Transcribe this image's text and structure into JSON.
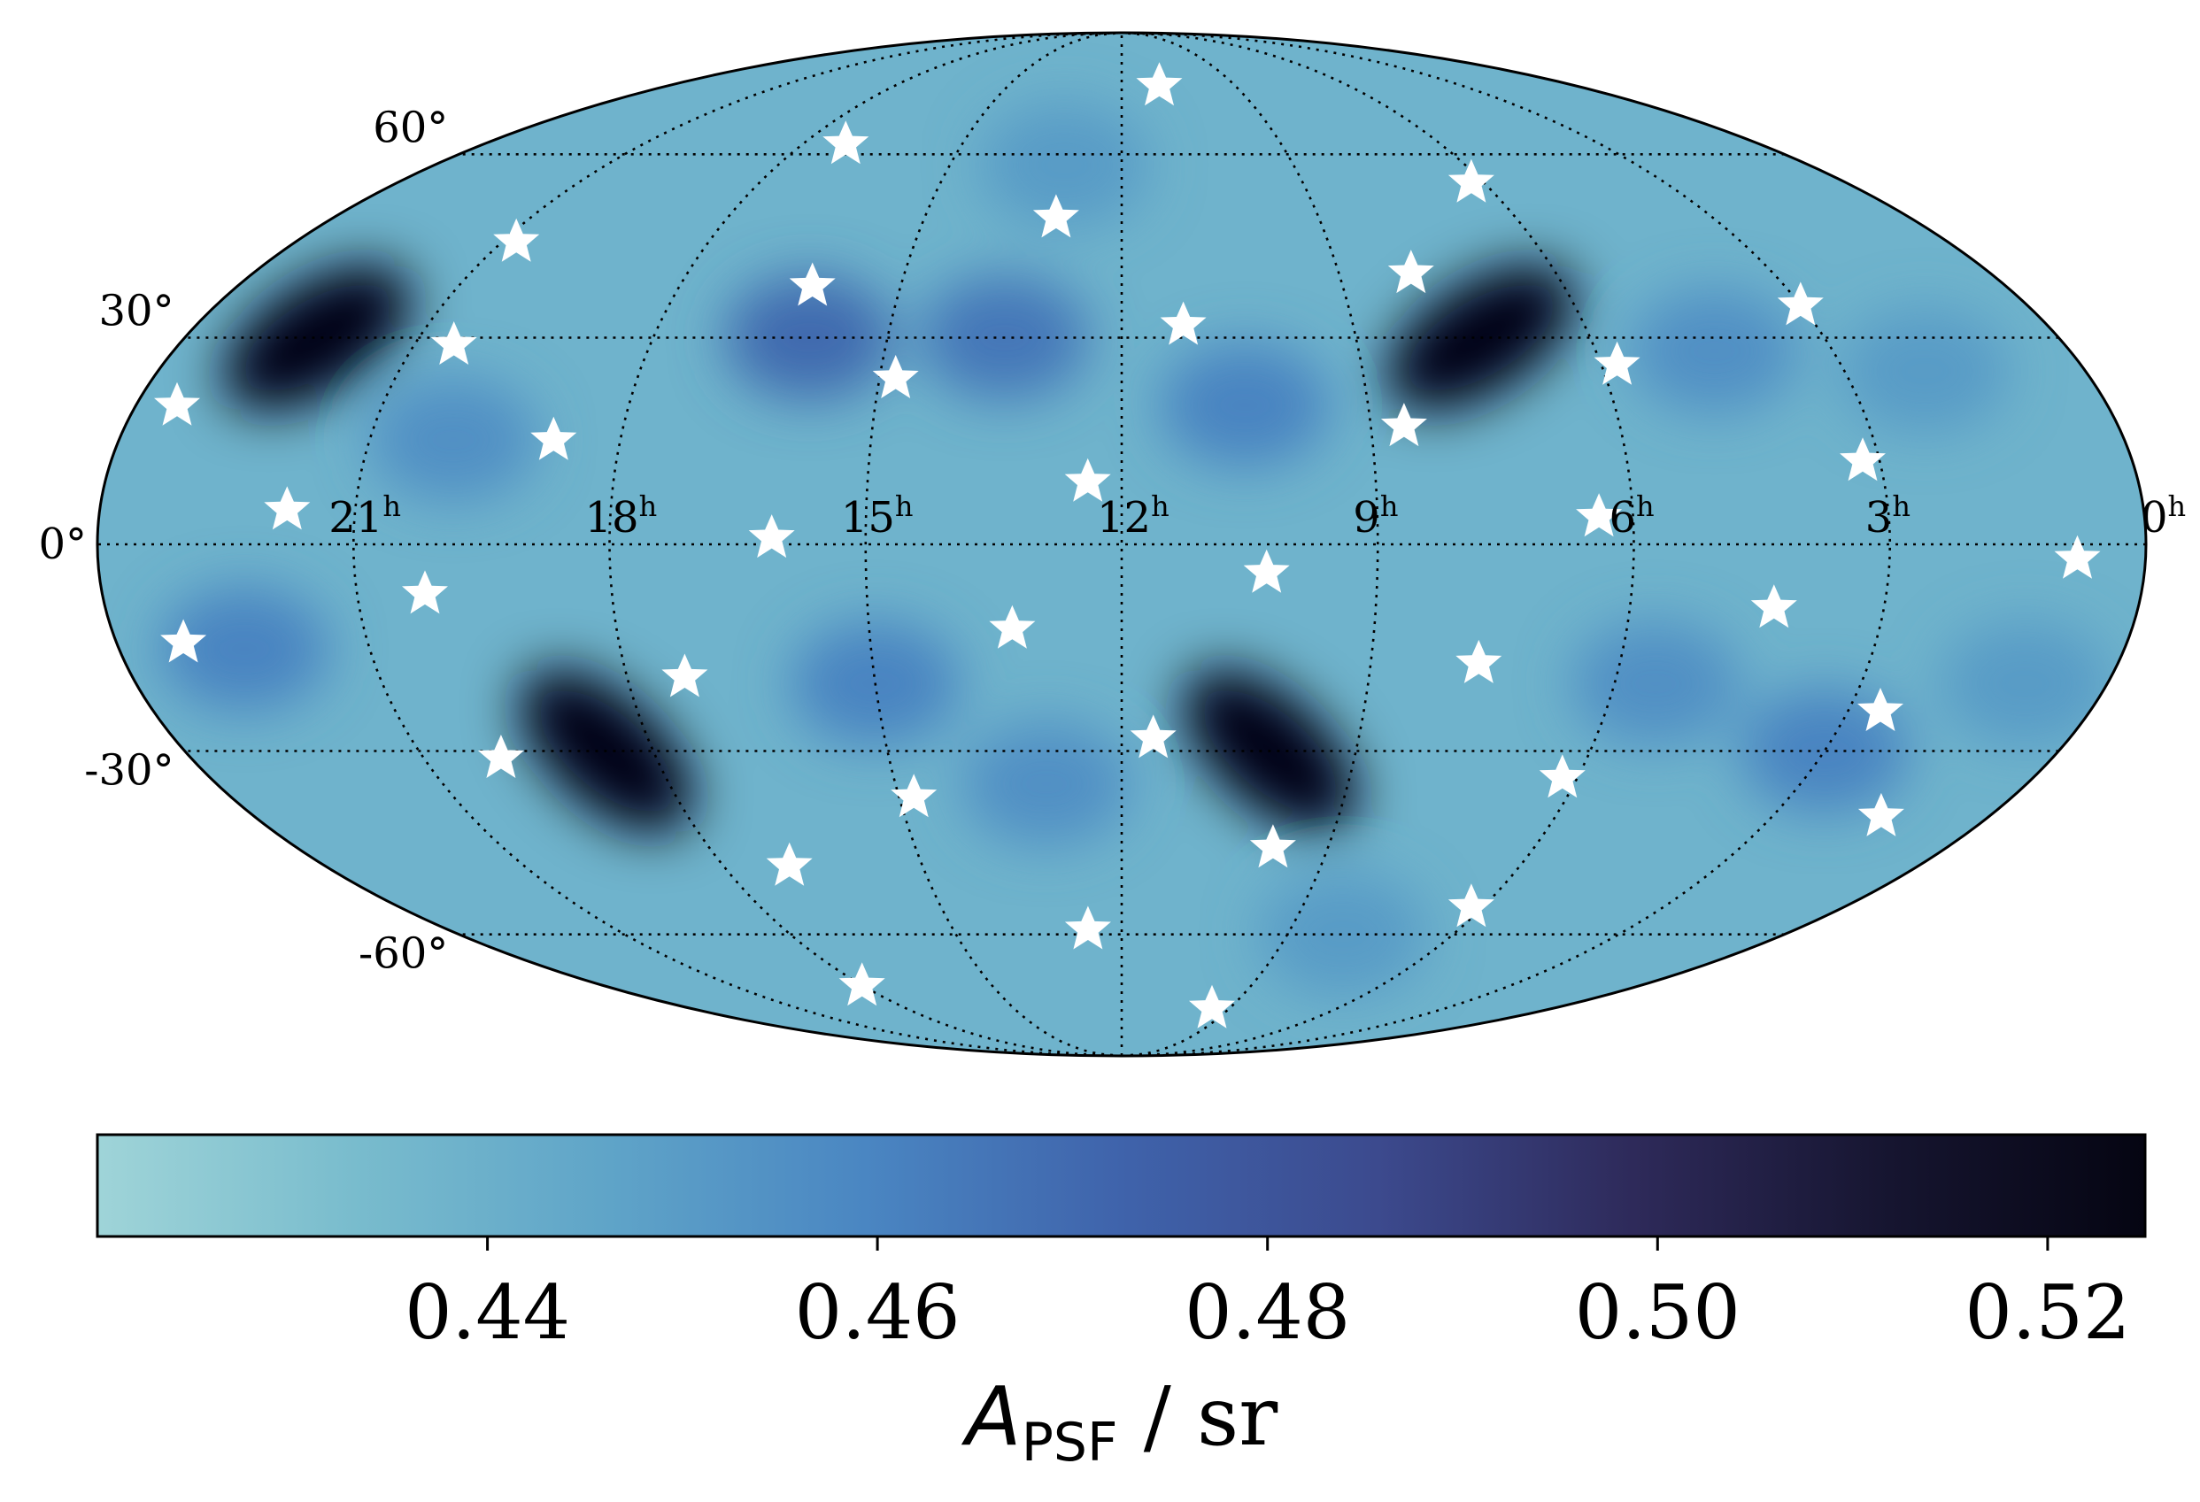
{
  "chart_data": {
    "type": "heatmap",
    "projection": "mollweide",
    "title": "",
    "colorbar": {
      "label_main": "A",
      "label_sub": "PSF",
      "label_suffix": " / sr",
      "min": 0.42,
      "max": 0.525,
      "ticks": [
        0.44,
        0.46,
        0.48,
        0.5,
        0.52
      ],
      "tick_labels": [
        "0.44",
        "0.46",
        "0.48",
        "0.50",
        "0.52"
      ],
      "colors": [
        "#9fd4d8",
        "#79bccd",
        "#5fa4c8",
        "#4a86c2",
        "#3f63ab",
        "#3c4a8e",
        "#2e2a5a",
        "#161530",
        "#050512"
      ]
    },
    "ra_ticks": [
      {
        "ra_h": 21,
        "label": "21",
        "sup": "h"
      },
      {
        "ra_h": 18,
        "label": "18",
        "sup": "h"
      },
      {
        "ra_h": 15,
        "label": "15",
        "sup": "h"
      },
      {
        "ra_h": 12,
        "label": "12",
        "sup": "h"
      },
      {
        "ra_h": 9,
        "label": "9",
        "sup": "h"
      },
      {
        "ra_h": 6,
        "label": "6",
        "sup": "h"
      },
      {
        "ra_h": 3,
        "label": "3",
        "sup": "h"
      },
      {
        "ra_h": 0,
        "label": "0",
        "sup": "h"
      }
    ],
    "dec_ticks": [
      {
        "dec": 60,
        "label": "60°"
      },
      {
        "dec": 30,
        "label": "30°"
      },
      {
        "dec": 0,
        "label": "0°"
      },
      {
        "dec": -30,
        "label": "-30°"
      },
      {
        "dec": -60,
        "label": "-60°"
      }
    ],
    "blobs": [
      {
        "ra_h": 22.3,
        "dec": 30,
        "value": 0.525
      },
      {
        "ra_h": 7.4,
        "dec": 30,
        "value": 0.525
      },
      {
        "ra_h": 18.6,
        "dec": -30,
        "value": 0.525
      },
      {
        "ra_h": 10.1,
        "dec": -30,
        "value": 0.525
      },
      {
        "ra_h": 16.0,
        "dec": 30,
        "value": 0.47
      },
      {
        "ra_h": 13.5,
        "dec": 30,
        "value": 0.465
      },
      {
        "ra_h": 10.5,
        "dec": 20,
        "value": 0.46
      },
      {
        "ra_h": 4.5,
        "dec": 28,
        "value": 0.455
      },
      {
        "ra_h": 2.0,
        "dec": 25,
        "value": 0.45
      },
      {
        "ra_h": 20.0,
        "dec": 15,
        "value": 0.455
      },
      {
        "ra_h": 22.5,
        "dec": -15,
        "value": 0.46
      },
      {
        "ra_h": 15.0,
        "dec": -20,
        "value": 0.46
      },
      {
        "ra_h": 13.0,
        "dec": -35,
        "value": 0.455
      },
      {
        "ra_h": 5.5,
        "dec": -20,
        "value": 0.455
      },
      {
        "ra_h": 3.0,
        "dec": -30,
        "value": 0.46
      },
      {
        "ra_h": 1.0,
        "dec": -20,
        "value": 0.45
      },
      {
        "ra_h": 13.0,
        "dec": 58,
        "value": 0.45
      },
      {
        "ra_h": 8.0,
        "dec": -60,
        "value": 0.45
      }
    ],
    "stars": [
      {
        "ra_h": 23.5,
        "dec": 20
      },
      {
        "ra_h": 21.8,
        "dec": 5
      },
      {
        "ra_h": 20.8,
        "dec": 45
      },
      {
        "ra_h": 20.5,
        "dec": 29
      },
      {
        "ra_h": 18.8,
        "dec": 15
      },
      {
        "ra_h": 17.2,
        "dec": 62
      },
      {
        "ra_h": 16.2,
        "dec": 38
      },
      {
        "ra_h": 14.8,
        "dec": 24
      },
      {
        "ra_h": 13.0,
        "dec": 49
      },
      {
        "ra_h": 12.4,
        "dec": 9
      },
      {
        "ra_h": 11.2,
        "dec": 32
      },
      {
        "ra_h": 11.0,
        "dec": 74
      },
      {
        "ra_h": 8.6,
        "dec": 17
      },
      {
        "ra_h": 8.0,
        "dec": 40
      },
      {
        "ra_h": 6.2,
        "dec": 55
      },
      {
        "ra_h": 5.8,
        "dec": 26
      },
      {
        "ra_h": 6.4,
        "dec": 4
      },
      {
        "ra_h": 3.0,
        "dec": 35
      },
      {
        "ra_h": 3.2,
        "dec": 12
      },
      {
        "ra_h": 0.8,
        "dec": -2
      },
      {
        "ra_h": 16.1,
        "dec": 1
      },
      {
        "ra_h": 20.2,
        "dec": -7
      },
      {
        "ra_h": 23.2,
        "dec": -14
      },
      {
        "ra_h": 17.3,
        "dec": -19
      },
      {
        "ra_h": 13.3,
        "dec": -12
      },
      {
        "ra_h": 10.3,
        "dec": -4
      },
      {
        "ra_h": 7.7,
        "dec": -17
      },
      {
        "ra_h": 4.3,
        "dec": -9
      },
      {
        "ra_h": 2.6,
        "dec": -24
      },
      {
        "ra_h": 11.6,
        "dec": -28
      },
      {
        "ra_h": 6.2,
        "dec": -34
      },
      {
        "ra_h": 1.5,
        "dec": -40
      },
      {
        "ra_h": 20.0,
        "dec": -31
      },
      {
        "ra_h": 14.8,
        "dec": -37
      },
      {
        "ra_h": 17.0,
        "dec": -48
      },
      {
        "ra_h": 9.8,
        "dec": -45
      },
      {
        "ra_h": 6.2,
        "dec": -55
      },
      {
        "ra_h": 12.6,
        "dec": -59
      },
      {
        "ra_h": 18.0,
        "dec": -70
      },
      {
        "ra_h": 9.5,
        "dec": -75
      }
    ]
  }
}
